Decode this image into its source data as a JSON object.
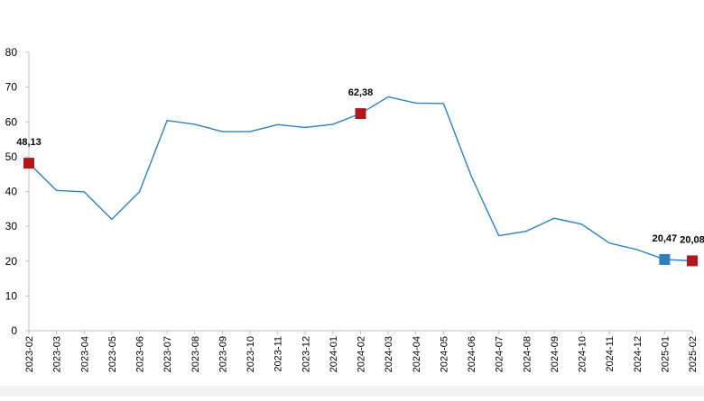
{
  "chart_data": {
    "type": "line",
    "title": "",
    "xlabel": "",
    "ylabel": "",
    "ylim": [
      0,
      80
    ],
    "yticks": [
      0,
      10,
      20,
      30,
      40,
      50,
      60,
      70,
      80
    ],
    "grid": false,
    "legend": "none",
    "categories": [
      "2023-02",
      "2023-03",
      "2023-04",
      "2023-05",
      "2023-06",
      "2023-07",
      "2023-08",
      "2023-09",
      "2023-10",
      "2023-11",
      "2023-12",
      "2024-01",
      "2024-02",
      "2024-03",
      "2024-04",
      "2024-05",
      "2024-06",
      "2024-07",
      "2024-08",
      "2024-09",
      "2024-10",
      "2024-11",
      "2024-12",
      "2025-01",
      "2025-02"
    ],
    "series": [
      {
        "values": [
          48.13,
          40.3,
          39.9,
          32.0,
          39.9,
          60.4,
          59.3,
          57.2,
          57.2,
          59.2,
          58.4,
          59.3,
          62.38,
          67.2,
          65.4,
          65.3,
          44.5,
          27.3,
          28.6,
          32.3,
          30.6,
          25.2,
          23.3,
          20.47,
          20.08
        ],
        "color": "#2e80bd"
      }
    ],
    "highlights": [
      {
        "category": "2023-02",
        "value": 48.13,
        "label": "48,13",
        "color": "#b0171e"
      },
      {
        "category": "2024-02",
        "value": 62.38,
        "label": "62,38",
        "color": "#b0171e"
      },
      {
        "category": "2025-01",
        "value": 20.47,
        "label": "20,47",
        "color": "#2e80bd"
      },
      {
        "category": "2025-02",
        "value": 20.08,
        "label": "20,08",
        "color": "#b0171e"
      }
    ],
    "colors": {
      "axis": "#bfbfbf",
      "text": "#000000"
    }
  }
}
